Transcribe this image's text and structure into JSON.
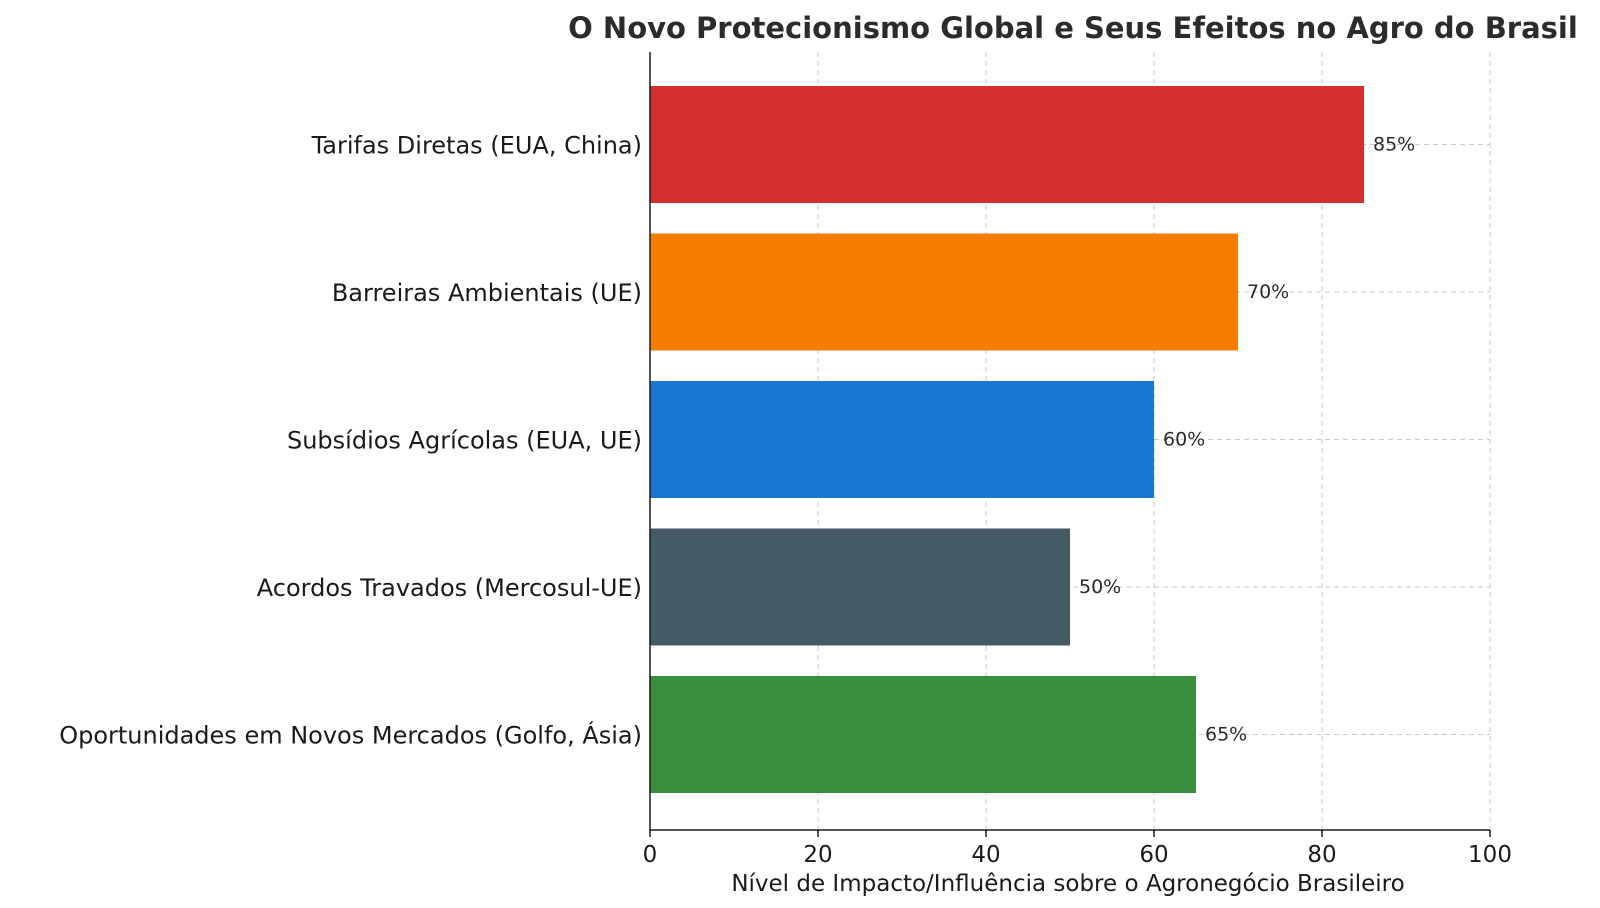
{
  "chart_data": {
    "type": "bar",
    "orientation": "horizontal",
    "title": "O Novo Protecionismo Global e Seus Efeitos no Agro do Brasil",
    "xlabel": "Nível de Impacto/Influência sobre o Agronegócio Brasileiro",
    "ylabel": "",
    "xlim": [
      0,
      100
    ],
    "xticks": [
      0,
      20,
      40,
      60,
      80,
      100
    ],
    "grid": true,
    "categories": [
      "Tarifas Diretas (EUA, China)",
      "Barreiras Ambientais (UE)",
      "Subsídios Agrícolas (EUA, UE)",
      "Acordos Travados (Mercosul-UE)",
      "Oportunidades em Novos Mercados (Golfo, Ásia)"
    ],
    "values": [
      85,
      70,
      60,
      50,
      65
    ],
    "value_labels": [
      "85%",
      "70%",
      "60%",
      "50%",
      "65%"
    ],
    "colors": [
      "#d32f2f",
      "#f57c00",
      "#1976d2",
      "#455a64",
      "#388e3c"
    ]
  }
}
